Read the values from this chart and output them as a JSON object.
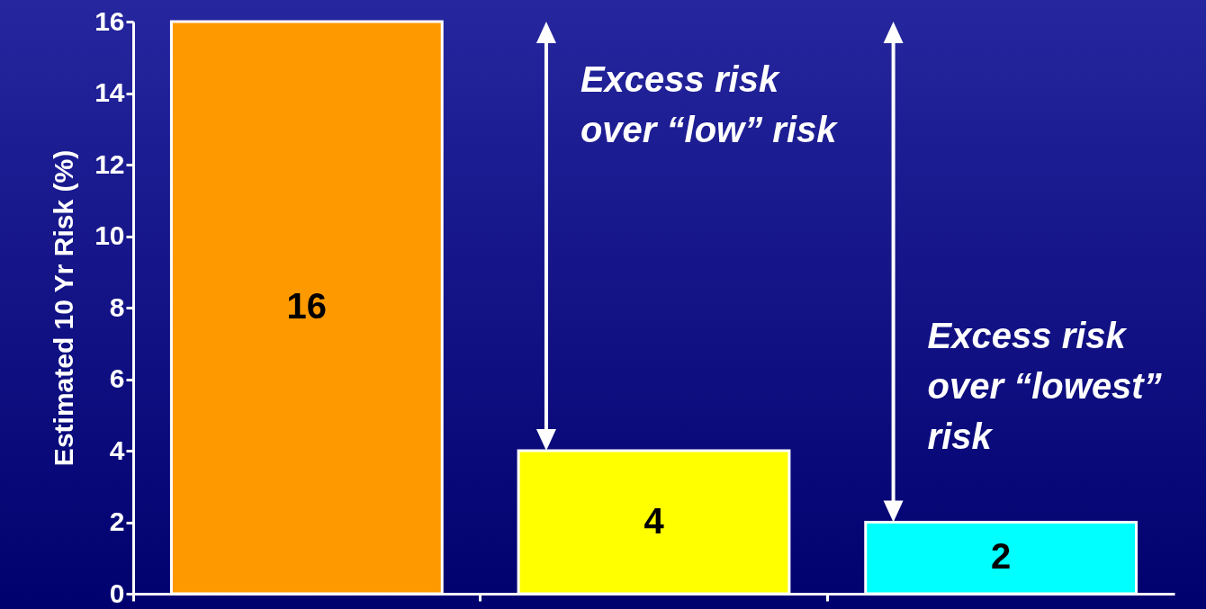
{
  "chart_data": {
    "type": "bar",
    "ylabel": "Estimated 10 Yr Risk (%)",
    "categories": [
      null,
      null,
      null
    ],
    "values": [
      16,
      4,
      2
    ],
    "colors": [
      "#ff9900",
      "#ffff00",
      "#00ffff"
    ],
    "ylim": [
      0,
      16
    ],
    "yticks": [
      0,
      2,
      4,
      6,
      8,
      10,
      12,
      14,
      16
    ],
    "data_labels": true,
    "annotations": [
      "Excess risk over “low” risk",
      "Excess risk over “lowest” risk"
    ]
  }
}
